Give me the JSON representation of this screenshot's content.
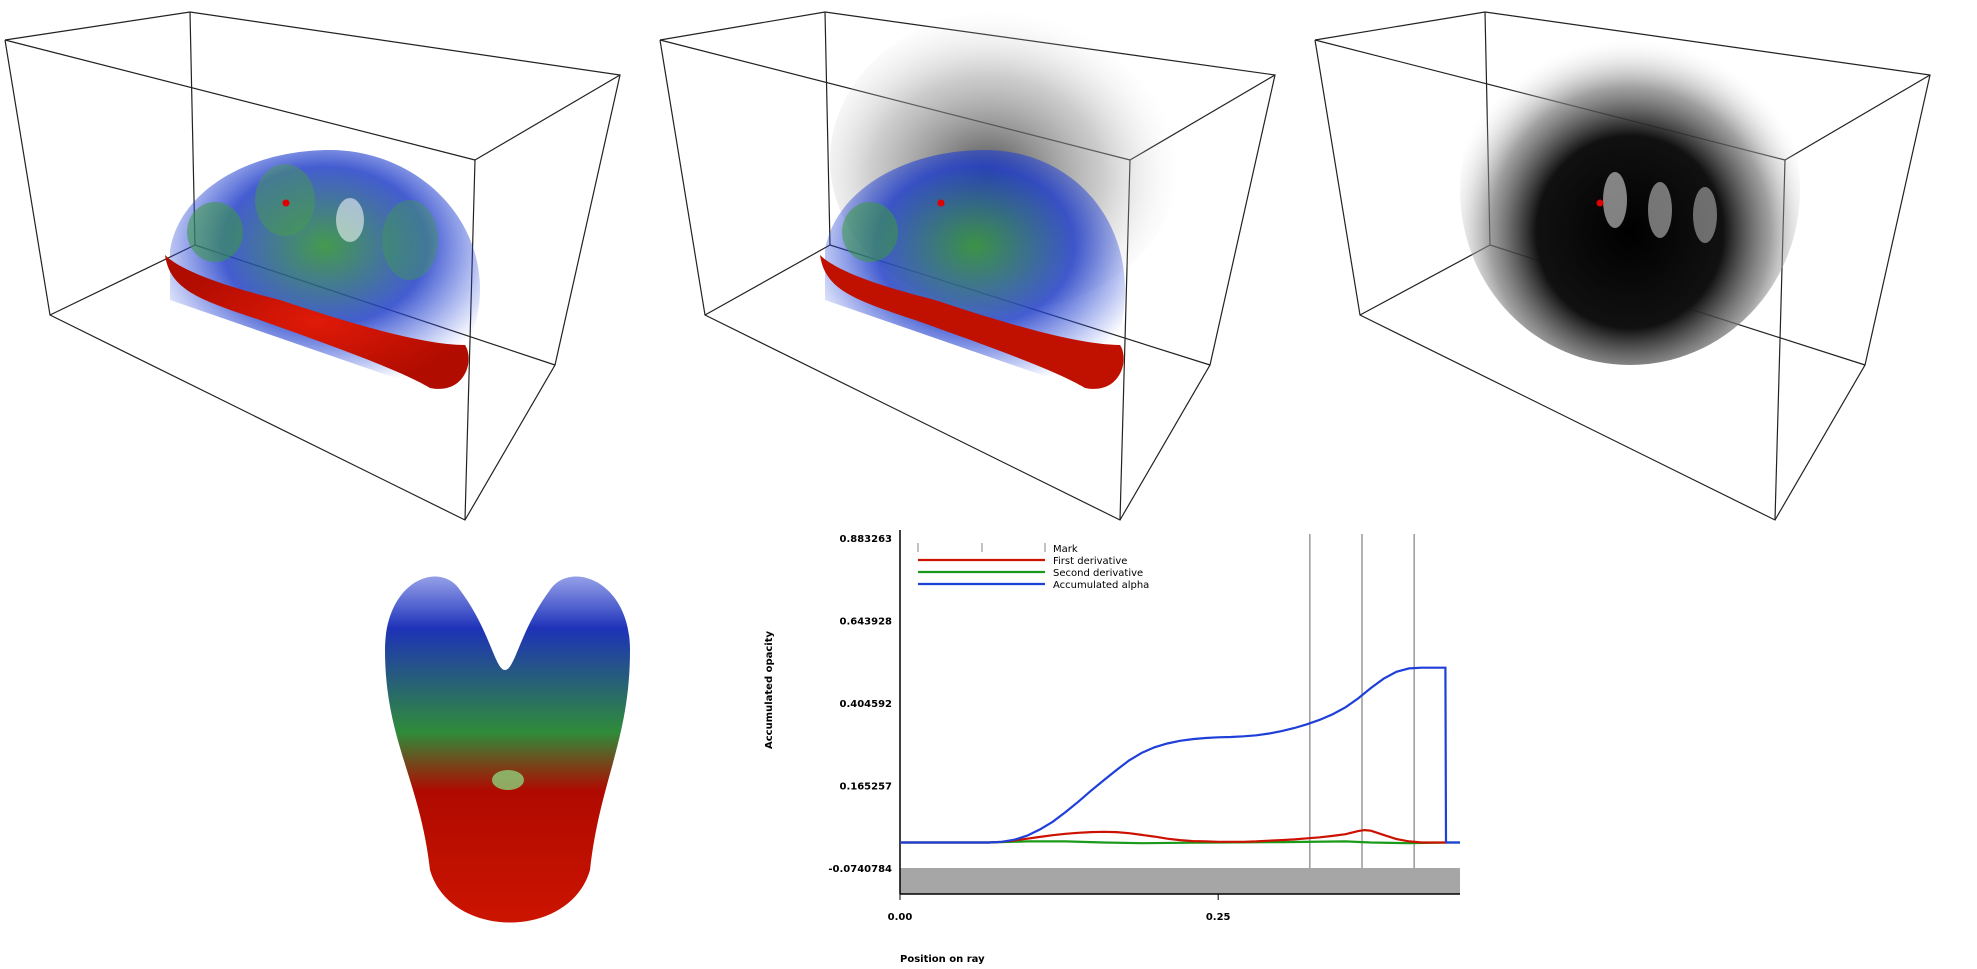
{
  "colors": {
    "red": "#cc1100",
    "green": "#1a9a1a",
    "blue": "#1e3fd8",
    "grey_fill": "#a6a6a6",
    "marker_line": "#9a9a9a"
  },
  "chart_data": {
    "type": "line",
    "xlabel": "Position on ray",
    "ylabel": "Accumulated opacity",
    "x_ticks": [
      "0.00",
      "0.25"
    ],
    "y_ticks": [
      "0.883263",
      "0.643928",
      "0.404592",
      "0.165257",
      "-0.0740784"
    ],
    "xlim": [
      0,
      0.44
    ],
    "ylim": [
      -0.0740784,
      0.883263
    ],
    "legend": [
      "Mark",
      "First derivative",
      "Second derivative",
      "Accumulated alpha"
    ],
    "legend_position": "top-left",
    "marks": [
      0.322,
      0.363,
      0.404
    ],
    "series": [
      {
        "name": "Accumulated alpha",
        "color": "#1e3fd8",
        "points": [
          [
            0,
            0
          ],
          [
            0.07,
            0
          ],
          [
            0.08,
            0.002
          ],
          [
            0.09,
            0.008
          ],
          [
            0.1,
            0.02
          ],
          [
            0.11,
            0.038
          ],
          [
            0.12,
            0.06
          ],
          [
            0.13,
            0.088
          ],
          [
            0.14,
            0.118
          ],
          [
            0.15,
            0.15
          ],
          [
            0.16,
            0.18
          ],
          [
            0.17,
            0.21
          ],
          [
            0.18,
            0.238
          ],
          [
            0.19,
            0.26
          ],
          [
            0.2,
            0.276
          ],
          [
            0.21,
            0.287
          ],
          [
            0.22,
            0.295
          ],
          [
            0.23,
            0.3
          ],
          [
            0.24,
            0.303
          ],
          [
            0.25,
            0.305
          ],
          [
            0.26,
            0.306
          ],
          [
            0.27,
            0.308
          ],
          [
            0.28,
            0.311
          ],
          [
            0.29,
            0.316
          ],
          [
            0.3,
            0.323
          ],
          [
            0.31,
            0.332
          ],
          [
            0.32,
            0.343
          ],
          [
            0.33,
            0.356
          ],
          [
            0.34,
            0.372
          ],
          [
            0.35,
            0.392
          ],
          [
            0.36,
            0.418
          ],
          [
            0.37,
            0.448
          ],
          [
            0.38,
            0.475
          ],
          [
            0.39,
            0.495
          ],
          [
            0.4,
            0.505
          ],
          [
            0.41,
            0.507
          ],
          [
            0.42,
            0.507
          ],
          [
            0.4285,
            0.507
          ],
          [
            0.429,
            0
          ]
        ]
      },
      {
        "name": "First derivative",
        "color": "#cc1100",
        "points": [
          [
            0,
            0
          ],
          [
            0.07,
            0
          ],
          [
            0.08,
            0.002
          ],
          [
            0.09,
            0.006
          ],
          [
            0.1,
            0.011
          ],
          [
            0.11,
            0.016
          ],
          [
            0.12,
            0.021
          ],
          [
            0.13,
            0.025
          ],
          [
            0.14,
            0.028
          ],
          [
            0.15,
            0.03
          ],
          [
            0.16,
            0.031
          ],
          [
            0.17,
            0.03
          ],
          [
            0.18,
            0.027
          ],
          [
            0.19,
            0.022
          ],
          [
            0.2,
            0.017
          ],
          [
            0.21,
            0.011
          ],
          [
            0.22,
            0.007
          ],
          [
            0.23,
            0.004
          ],
          [
            0.24,
            0.003
          ],
          [
            0.25,
            0.002
          ],
          [
            0.26,
            0.002
          ],
          [
            0.27,
            0.002
          ],
          [
            0.28,
            0.003
          ],
          [
            0.29,
            0.005
          ],
          [
            0.3,
            0.007
          ],
          [
            0.31,
            0.009
          ],
          [
            0.32,
            0.012
          ],
          [
            0.33,
            0.015
          ],
          [
            0.34,
            0.019
          ],
          [
            0.35,
            0.024
          ],
          [
            0.36,
            0.033
          ],
          [
            0.365,
            0.036
          ],
          [
            0.37,
            0.034
          ],
          [
            0.38,
            0.022
          ],
          [
            0.39,
            0.01
          ],
          [
            0.4,
            0.003
          ],
          [
            0.41,
            0.0
          ],
          [
            0.43,
            0
          ]
        ]
      },
      {
        "name": "Second derivative",
        "color": "#1a9a1a",
        "points": [
          [
            0,
            0
          ],
          [
            0.07,
            0
          ],
          [
            0.1,
            0.003
          ],
          [
            0.13,
            0.003
          ],
          [
            0.16,
            0.0
          ],
          [
            0.19,
            -0.002
          ],
          [
            0.22,
            -0.001
          ],
          [
            0.25,
            0.0
          ],
          [
            0.3,
            0.001
          ],
          [
            0.35,
            0.003
          ],
          [
            0.37,
            0.0
          ],
          [
            0.4,
            -0.002
          ],
          [
            0.43,
            0
          ],
          [
            0.44,
            0
          ]
        ]
      }
    ]
  }
}
